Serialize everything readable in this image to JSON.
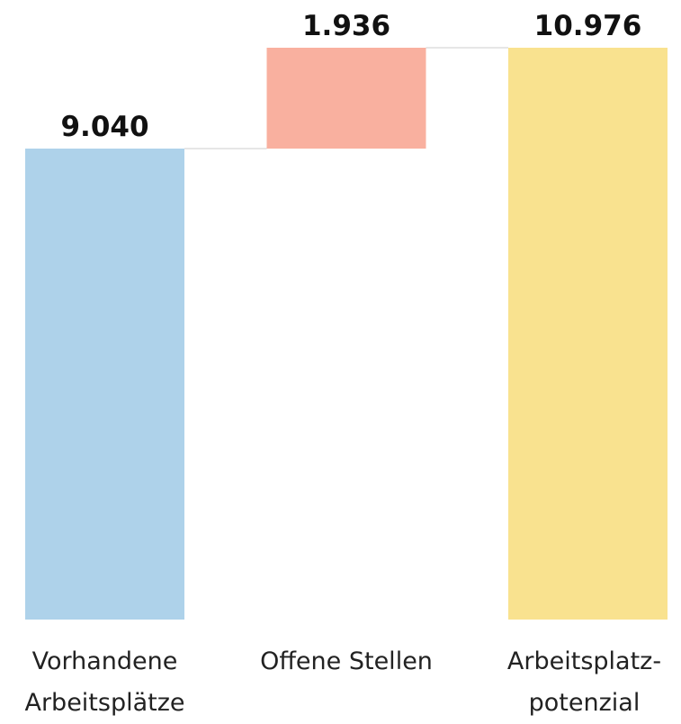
{
  "chart_data": {
    "type": "waterfall",
    "categories": [
      "Vorhandene Arbeitsplätze",
      "Offene Stellen",
      "Arbeitsplatz-potenzial"
    ],
    "values": [
      9040,
      1936,
      10976
    ],
    "value_labels": [
      "9.040",
      "1.936",
      "10.976"
    ],
    "measure": [
      "absolute",
      "relative",
      "total"
    ],
    "colors": [
      "#aed2ea",
      "#f9b09f",
      "#f9e28f"
    ]
  }
}
